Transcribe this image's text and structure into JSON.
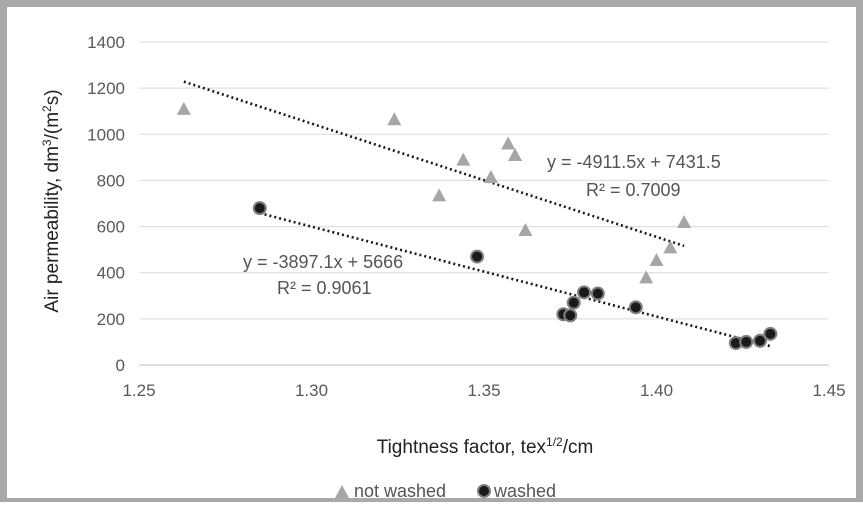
{
  "chart_data": {
    "type": "scatter",
    "xlabel": "Tightness factor, tex",
    "xlabel_sup": "1/2",
    "xlabel_suffix": "/cm",
    "ylabel": "Air permeability, dm",
    "ylabel_sup": "3",
    "ylabel_mid": "/(m",
    "ylabel_sup2": "2",
    "ylabel_suffix": "s)",
    "xlim": [
      1.25,
      1.45
    ],
    "ylim": [
      0,
      1400
    ],
    "x_ticks": [
      1.25,
      1.3,
      1.35,
      1.4,
      1.45
    ],
    "x_tick_labels": [
      "1.25",
      "1.30",
      "1.35",
      "1.40",
      "1.45"
    ],
    "y_ticks": [
      0,
      200,
      400,
      600,
      800,
      1000,
      1200,
      1400
    ],
    "y_tick_labels": [
      "0",
      "200",
      "400",
      "600",
      "800",
      "1000",
      "1200",
      "1400"
    ],
    "grid": true,
    "legend_position": "bottom",
    "series": [
      {
        "name": "not washed",
        "marker": "triangle",
        "color": "#a6a6a6",
        "points": [
          [
            1.263,
            1110
          ],
          [
            1.324,
            1065
          ],
          [
            1.337,
            735
          ],
          [
            1.344,
            890
          ],
          [
            1.352,
            815
          ],
          [
            1.357,
            960
          ],
          [
            1.359,
            910
          ],
          [
            1.362,
            585
          ],
          [
            1.397,
            380
          ],
          [
            1.4,
            455
          ],
          [
            1.404,
            510
          ],
          [
            1.408,
            620
          ]
        ],
        "trendline": {
          "slope": -4911.5,
          "intercept": 7431.5,
          "x_range": [
            1.263,
            1.408
          ],
          "equation": "y = -4911.5x + 7431.5",
          "r2": "R² = 0.7009"
        }
      },
      {
        "name": "washed",
        "marker": "circle",
        "color": "#1a1a1a",
        "points": [
          [
            1.285,
            680
          ],
          [
            1.348,
            470
          ],
          [
            1.373,
            220
          ],
          [
            1.375,
            215
          ],
          [
            1.376,
            270
          ],
          [
            1.379,
            315
          ],
          [
            1.383,
            310
          ],
          [
            1.394,
            250
          ],
          [
            1.423,
            95
          ],
          [
            1.426,
            100
          ],
          [
            1.43,
            105
          ],
          [
            1.433,
            135
          ]
        ],
        "trendline": {
          "slope": -3897.1,
          "intercept": 5666,
          "x_range": [
            1.285,
            1.433
          ],
          "equation": "y = -3897.1x + 5666",
          "r2": "R² = 0.9061"
        }
      }
    ]
  }
}
